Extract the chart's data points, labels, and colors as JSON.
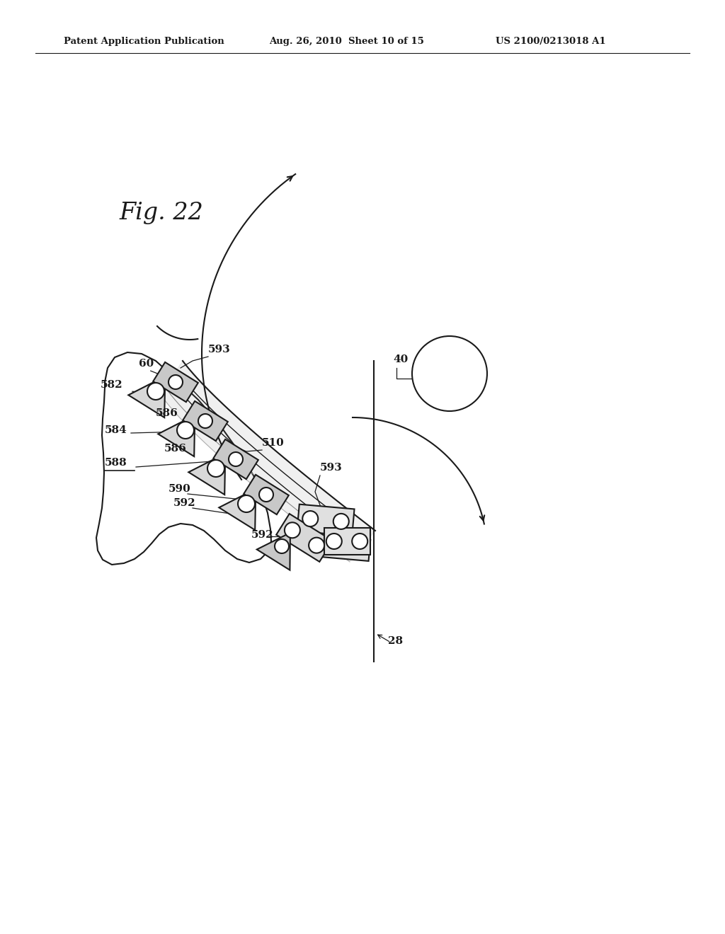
{
  "background_color": "#ffffff",
  "header_text": "Patent Application Publication",
  "header_date": "Aug. 26, 2010  Sheet 10 of 15",
  "header_patent": "US 2100/0213018 A1",
  "fig_label": "Fig. 22",
  "text_color": "#1a1a1a",
  "line_color": "#1a1a1a"
}
